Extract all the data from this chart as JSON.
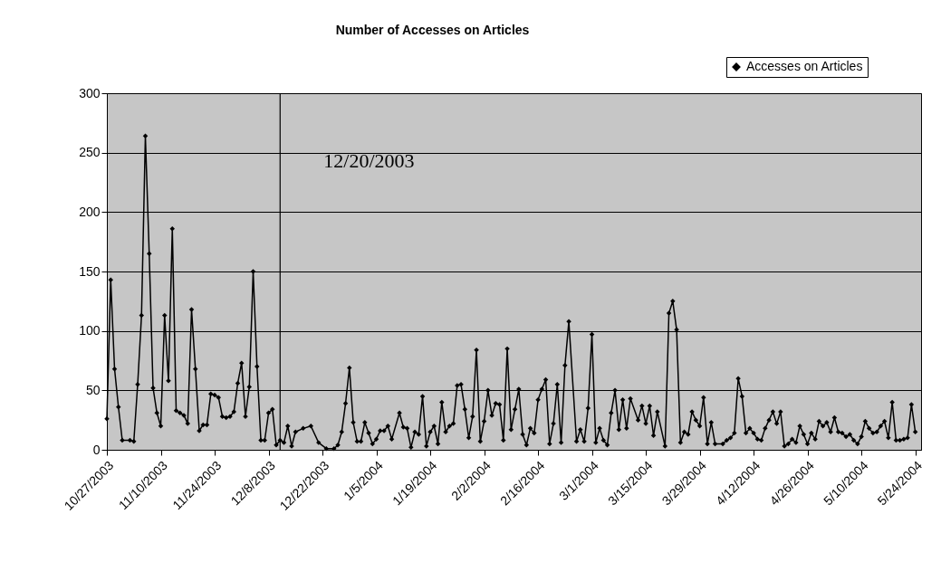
{
  "chart_data": {
    "type": "line",
    "title": "Number of Accesses on Articles",
    "x": [
      "2003-10-27",
      "2003-10-28",
      "2003-10-29",
      "2003-10-30",
      "2003-10-31",
      "2003-11-02",
      "2003-11-03",
      "2003-11-04",
      "2003-11-05",
      "2003-11-06",
      "2003-11-07",
      "2003-11-08",
      "2003-11-09",
      "2003-11-10",
      "2003-11-11",
      "2003-11-12",
      "2003-11-13",
      "2003-11-14",
      "2003-11-15",
      "2003-11-16",
      "2003-11-17",
      "2003-11-18",
      "2003-11-19",
      "2003-11-20",
      "2003-11-21",
      "2003-11-22",
      "2003-11-23",
      "2003-11-24",
      "2003-11-25",
      "2003-11-26",
      "2003-11-27",
      "2003-11-28",
      "2003-11-29",
      "2003-11-30",
      "2003-12-01",
      "2003-12-02",
      "2003-12-03",
      "2003-12-04",
      "2003-12-05",
      "2003-12-06",
      "2003-12-07",
      "2003-12-08",
      "2003-12-09",
      "2003-12-10",
      "2003-12-11",
      "2003-12-12",
      "2003-12-13",
      "2003-12-14",
      "2003-12-15",
      "2003-12-17",
      "2003-12-19",
      "2003-12-21",
      "2003-12-23",
      "2003-12-25",
      "2003-12-26",
      "2003-12-27",
      "2003-12-28",
      "2003-12-29",
      "2003-12-30",
      "2003-12-31",
      "2004-01-01",
      "2004-01-02",
      "2004-01-03",
      "2004-01-04",
      "2004-01-05",
      "2004-01-06",
      "2004-01-07",
      "2004-01-08",
      "2004-01-09",
      "2004-01-11",
      "2004-01-12",
      "2004-01-13",
      "2004-01-14",
      "2004-01-15",
      "2004-01-16",
      "2004-01-17",
      "2004-01-18",
      "2004-01-19",
      "2004-01-20",
      "2004-01-21",
      "2004-01-22",
      "2004-01-23",
      "2004-01-24",
      "2004-01-25",
      "2004-01-26",
      "2004-01-27",
      "2004-01-28",
      "2004-01-29",
      "2004-01-30",
      "2004-01-31",
      "2004-02-01",
      "2004-02-02",
      "2004-02-03",
      "2004-02-04",
      "2004-02-05",
      "2004-02-06",
      "2004-02-07",
      "2004-02-08",
      "2004-02-09",
      "2004-02-10",
      "2004-02-11",
      "2004-02-12",
      "2004-02-13",
      "2004-02-14",
      "2004-02-15",
      "2004-02-16",
      "2004-02-17",
      "2004-02-18",
      "2004-02-19",
      "2004-02-20",
      "2004-02-21",
      "2004-02-22",
      "2004-02-23",
      "2004-02-24",
      "2004-02-26",
      "2004-02-27",
      "2004-02-28",
      "2004-02-29",
      "2004-03-01",
      "2004-03-02",
      "2004-03-03",
      "2004-03-04",
      "2004-03-05",
      "2004-03-06",
      "2004-03-07",
      "2004-03-08",
      "2004-03-09",
      "2004-03-10",
      "2004-03-11",
      "2004-03-13",
      "2004-03-14",
      "2004-03-15",
      "2004-03-16",
      "2004-03-17",
      "2004-03-18",
      "2004-03-20",
      "2004-03-21",
      "2004-03-22",
      "2004-03-23",
      "2004-03-24",
      "2004-03-25",
      "2004-03-26",
      "2004-03-27",
      "2004-03-28",
      "2004-03-29",
      "2004-03-30",
      "2004-03-31",
      "2004-04-01",
      "2004-04-02",
      "2004-04-04",
      "2004-04-05",
      "2004-04-06",
      "2004-04-07",
      "2004-04-08",
      "2004-04-09",
      "2004-04-10",
      "2004-04-11",
      "2004-04-12",
      "2004-04-13",
      "2004-04-14",
      "2004-04-15",
      "2004-04-16",
      "2004-04-17",
      "2004-04-18",
      "2004-04-19",
      "2004-04-20",
      "2004-04-21",
      "2004-04-22",
      "2004-04-23",
      "2004-04-24",
      "2004-04-25",
      "2004-04-26",
      "2004-04-27",
      "2004-04-28",
      "2004-04-29",
      "2004-04-30",
      "2004-05-01",
      "2004-05-02",
      "2004-05-03",
      "2004-05-04",
      "2004-05-05",
      "2004-05-06",
      "2004-05-07",
      "2004-05-08",
      "2004-05-09",
      "2004-05-10",
      "2004-05-11",
      "2004-05-12",
      "2004-05-13",
      "2004-05-14",
      "2004-05-15",
      "2004-05-16",
      "2004-05-17",
      "2004-05-18",
      "2004-05-19",
      "2004-05-20",
      "2004-05-21",
      "2004-05-22",
      "2004-05-23",
      "2004-05-24"
    ],
    "series": [
      {
        "name": "Accesses on Articles",
        "color": "#000000",
        "values": [
          26,
          143,
          68,
          36,
          8,
          8,
          7,
          55,
          113,
          264,
          165,
          52,
          31,
          20,
          113,
          58,
          186,
          33,
          31,
          29,
          22,
          118,
          68,
          16,
          21,
          21,
          47,
          46,
          44,
          28,
          27,
          28,
          32,
          56,
          73,
          28,
          53,
          150,
          70,
          8,
          8,
          31,
          34,
          4,
          8,
          6,
          20,
          3,
          15,
          18,
          20,
          6,
          1,
          1,
          4,
          15,
          39,
          69,
          23,
          7,
          7,
          23,
          14,
          5,
          9,
          16,
          16,
          20,
          9,
          31,
          19,
          18,
          2,
          15,
          13,
          45,
          3,
          15,
          20,
          5,
          40,
          15,
          20,
          22,
          54,
          55,
          34,
          10,
          28,
          84,
          7,
          24,
          50,
          29,
          39,
          38,
          8,
          85,
          17,
          34,
          51,
          13,
          4,
          18,
          14,
          42,
          51,
          59,
          5,
          22,
          55,
          6,
          71,
          108,
          7,
          17,
          7,
          35,
          97,
          6,
          18,
          8,
          4,
          31,
          50,
          17,
          42,
          18,
          43,
          25,
          37,
          22,
          37,
          12,
          32,
          3,
          115,
          125,
          101,
          6,
          15,
          13,
          32,
          25,
          20,
          44,
          5,
          23,
          5,
          5,
          8,
          10,
          14,
          60,
          45,
          14,
          18,
          14,
          9,
          8,
          18,
          25,
          32,
          22,
          32,
          3,
          5,
          9,
          6,
          20,
          13,
          5,
          14,
          9,
          24,
          20,
          23,
          15,
          27,
          15,
          14,
          11,
          13,
          8,
          5,
          11,
          24,
          18,
          14,
          15,
          20,
          24,
          10,
          40,
          8,
          8,
          9,
          10,
          38,
          15
        ]
      }
    ],
    "xlim": [
      "2003-10-27",
      "2004-05-25T12:00"
    ],
    "xticks": [
      {
        "value": "2003-10-27",
        "label": "10/27/2003"
      },
      {
        "value": "2003-11-10",
        "label": "11/10/2003"
      },
      {
        "value": "2003-11-24",
        "label": "11/24/2003"
      },
      {
        "value": "2003-12-08",
        "label": "12/8/2003"
      },
      {
        "value": "2003-12-22",
        "label": "12/22/2003"
      },
      {
        "value": "2004-01-05",
        "label": "1/5/2004"
      },
      {
        "value": "2004-01-19",
        "label": "1/19/2004"
      },
      {
        "value": "2004-02-02",
        "label": "2/2/2004"
      },
      {
        "value": "2004-02-16",
        "label": "2/16/2004"
      },
      {
        "value": "2004-03-01",
        "label": "3/1/2004"
      },
      {
        "value": "2004-03-15",
        "label": "3/15/2004"
      },
      {
        "value": "2004-03-29",
        "label": "3/29/2004"
      },
      {
        "value": "2004-04-12",
        "label": "4/12/2004"
      },
      {
        "value": "2004-04-26",
        "label": "4/26/2004"
      },
      {
        "value": "2004-05-10",
        "label": "5/10/2004"
      },
      {
        "value": "2004-05-24",
        "label": "5/24/2004"
      }
    ],
    "ylim": [
      0,
      300
    ],
    "yticks": [
      0,
      50,
      100,
      150,
      200,
      250,
      300
    ],
    "ref_lines": [
      {
        "axis": "x",
        "value": "2003-12-11",
        "label": "12/20/2003",
        "color": "#000000"
      }
    ],
    "grid": "y",
    "legend": "top right",
    "marker": "diamond",
    "line_style": "solid"
  }
}
